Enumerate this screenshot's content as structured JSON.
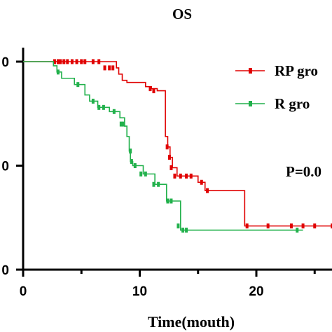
{
  "chart_data": {
    "type": "line",
    "title": "OS",
    "xlabel": "Time(mouth)",
    "ylabel": "",
    "xlim": [
      0,
      28
    ],
    "ylim": [
      0,
      1
    ],
    "x_ticks": [
      0,
      10,
      20
    ],
    "x_minor_ticks": [
      5,
      15,
      25
    ],
    "y_tick_labels": [
      {
        "value": 1.0,
        "label": "0"
      },
      {
        "value": 0.5,
        "label": "0"
      },
      {
        "value": 0.0,
        "label": "0"
      }
    ],
    "grid": false,
    "legend_position": "right",
    "annotation": "P=0.0",
    "series": [
      {
        "name": "RP gro",
        "color": "#e00000",
        "steps": [
          [
            0,
            1.0
          ],
          [
            8.0,
            0.97
          ],
          [
            8.2,
            0.94
          ],
          [
            8.5,
            0.91
          ],
          [
            8.9,
            0.9
          ],
          [
            10.5,
            0.88
          ],
          [
            11.0,
            0.87
          ],
          [
            11.5,
            0.86
          ],
          [
            12.2,
            0.64
          ],
          [
            12.4,
            0.59
          ],
          [
            12.6,
            0.54
          ],
          [
            12.8,
            0.49
          ],
          [
            13.2,
            0.45
          ],
          [
            15.0,
            0.42
          ],
          [
            15.6,
            0.38
          ],
          [
            19.0,
            0.21
          ],
          [
            28.0,
            0.21
          ]
        ],
        "censors": [
          [
            2.7,
            1.0
          ],
          [
            3.0,
            1.0
          ],
          [
            3.2,
            1.0
          ],
          [
            3.5,
            1.0
          ],
          [
            3.8,
            1.0
          ],
          [
            4.2,
            1.0
          ],
          [
            4.6,
            1.0
          ],
          [
            5.0,
            1.0
          ],
          [
            5.3,
            1.0
          ],
          [
            6.0,
            1.0
          ],
          [
            6.5,
            1.0
          ],
          [
            7.0,
            0.97
          ],
          [
            7.4,
            0.97
          ],
          [
            7.7,
            0.97
          ],
          [
            10.9,
            0.87
          ],
          [
            11.2,
            0.86
          ],
          [
            12.35,
            0.59
          ],
          [
            12.55,
            0.54
          ],
          [
            12.7,
            0.49
          ],
          [
            13.0,
            0.45
          ],
          [
            13.5,
            0.45
          ],
          [
            14.0,
            0.45
          ],
          [
            14.4,
            0.45
          ],
          [
            15.3,
            0.42
          ],
          [
            15.8,
            0.38
          ],
          [
            19.2,
            0.21
          ],
          [
            21.0,
            0.21
          ],
          [
            23.0,
            0.21
          ],
          [
            24.0,
            0.21
          ],
          [
            25.0,
            0.21
          ],
          [
            26.5,
            0.21
          ]
        ]
      },
      {
        "name": "R gro",
        "color": "#22b14c",
        "steps": [
          [
            0,
            1.0
          ],
          [
            2.6,
            0.98
          ],
          [
            2.9,
            0.95
          ],
          [
            3.3,
            0.92
          ],
          [
            4.4,
            0.89
          ],
          [
            5.3,
            0.84
          ],
          [
            5.7,
            0.81
          ],
          [
            6.4,
            0.78
          ],
          [
            7.4,
            0.76
          ],
          [
            8.3,
            0.73
          ],
          [
            8.7,
            0.69
          ],
          [
            8.9,
            0.64
          ],
          [
            9.1,
            0.57
          ],
          [
            9.2,
            0.52
          ],
          [
            9.4,
            0.5
          ],
          [
            10.3,
            0.46
          ],
          [
            11.3,
            0.41
          ],
          [
            12.3,
            0.33
          ],
          [
            13.5,
            0.19
          ],
          [
            24.0,
            0.19
          ]
        ],
        "censors": [
          [
            3.0,
            0.95
          ],
          [
            4.7,
            0.89
          ],
          [
            6.0,
            0.81
          ],
          [
            6.5,
            0.78
          ],
          [
            6.9,
            0.78
          ],
          [
            7.8,
            0.76
          ],
          [
            8.4,
            0.7
          ],
          [
            8.6,
            0.7
          ],
          [
            9.2,
            0.57
          ],
          [
            9.3,
            0.52
          ],
          [
            9.6,
            0.5
          ],
          [
            10.1,
            0.46
          ],
          [
            10.5,
            0.46
          ],
          [
            11.2,
            0.41
          ],
          [
            11.6,
            0.41
          ],
          [
            12.4,
            0.33
          ],
          [
            12.7,
            0.33
          ],
          [
            13.3,
            0.21
          ],
          [
            13.7,
            0.19
          ],
          [
            14.0,
            0.19
          ],
          [
            23.5,
            0.19
          ]
        ]
      }
    ]
  }
}
